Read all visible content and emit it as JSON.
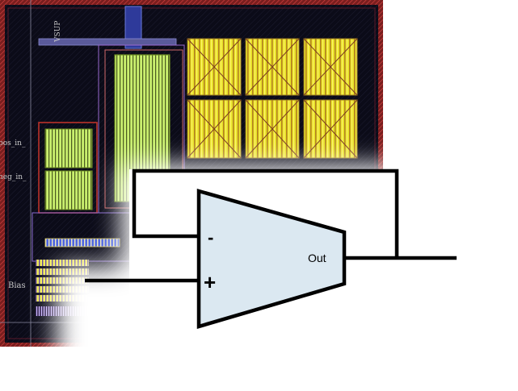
{
  "layout": {
    "pin_labels": {
      "top": "VSUP",
      "pos_in": "pos_in_",
      "neg_in": "neg_in_",
      "bias": "Bias"
    }
  },
  "opamp": {
    "inverting_symbol": "-",
    "noninverting_symbol": "+",
    "output_label": "Out"
  },
  "colors": {
    "background": "#ffffff",
    "layout_border": "#b02a2a",
    "layout_fill": "#0c0c1c",
    "metal_yellow": "#f2ee2a",
    "metal_lime": "#c7f06a",
    "poly_blue": "#3b4fd6",
    "opamp_fill": "#dbe8f1",
    "wire": "#000000"
  }
}
